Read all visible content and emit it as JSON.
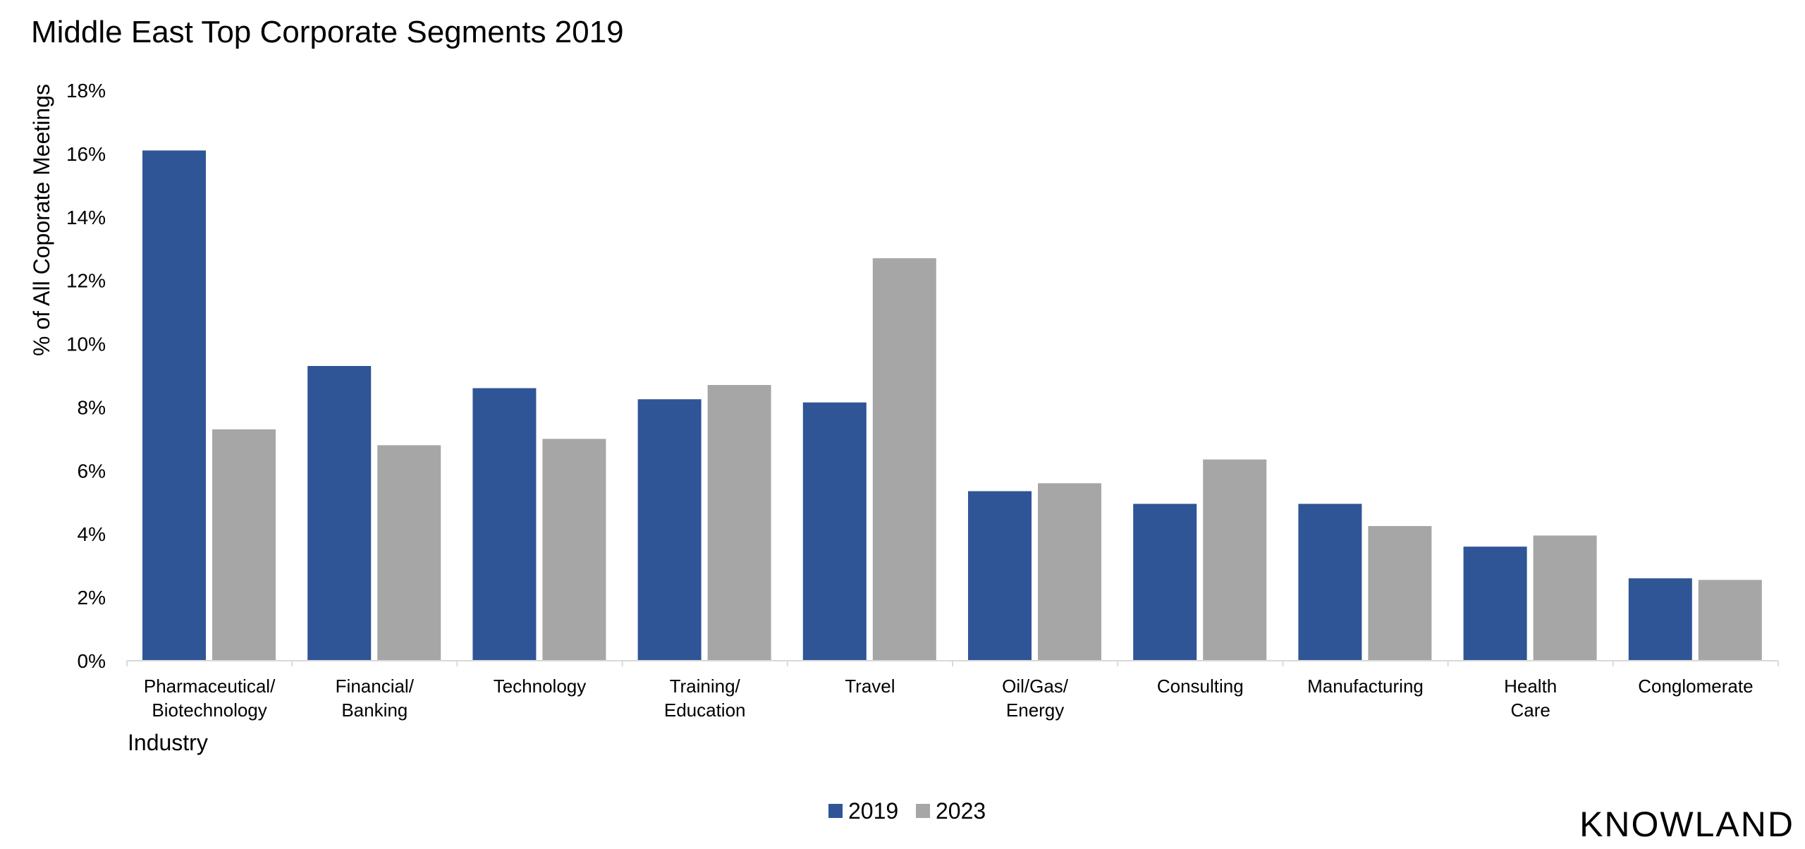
{
  "colors": {
    "series_2019": "#2f5597",
    "series_2023": "#a6a6a6",
    "axis": "#d9d9d9"
  },
  "brand": "KNOWLAND",
  "chart_data": {
    "type": "bar",
    "title": "Middle East Top Corporate Segments 2019",
    "xlabel": "Industry",
    "ylabel": "% of All Coporate Meetings",
    "ylim": [
      0,
      18
    ],
    "yticks": [
      0,
      2,
      4,
      6,
      8,
      10,
      12,
      14,
      16,
      18
    ],
    "ytick_labels": [
      "0%",
      "2%",
      "4%",
      "6%",
      "8%",
      "10%",
      "12%",
      "14%",
      "16%",
      "18%"
    ],
    "categories": [
      [
        "Pharmaceutical/",
        "Biotechnology"
      ],
      [
        "Financial/",
        "Banking"
      ],
      [
        "Technology"
      ],
      [
        "Training/",
        "Education"
      ],
      [
        "Travel"
      ],
      [
        "Oil/Gas/",
        "Energy"
      ],
      [
        "Consulting"
      ],
      [
        "Manufacturing"
      ],
      [
        "Health",
        "Care"
      ],
      [
        "Conglomerate"
      ]
    ],
    "series": [
      {
        "name": "2019",
        "values": [
          16.1,
          9.3,
          8.6,
          8.25,
          8.15,
          5.35,
          4.95,
          4.95,
          3.6,
          2.6
        ]
      },
      {
        "name": "2023",
        "values": [
          7.3,
          6.8,
          7.0,
          8.7,
          12.7,
          5.6,
          6.35,
          4.25,
          3.95,
          2.55
        ]
      }
    ],
    "grid": false,
    "legend": "bottom"
  }
}
